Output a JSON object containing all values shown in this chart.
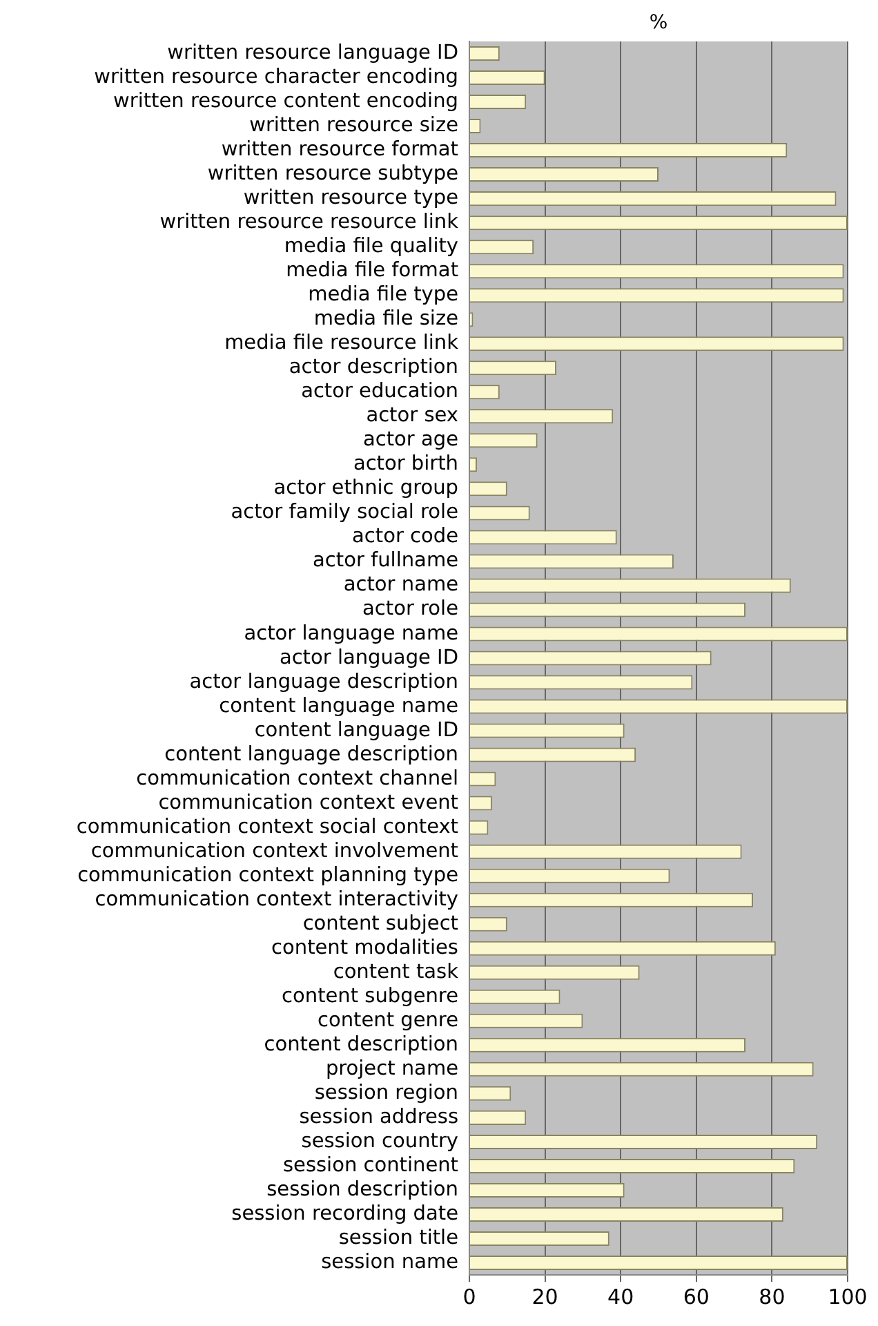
{
  "chart_data": {
    "type": "bar",
    "orientation": "horizontal",
    "xlabel": "%",
    "categories": [
      "written resource language ID",
      "written resource character encoding",
      "written resource content encoding",
      "written resource size",
      "written resource format",
      "written resource subtype",
      "written resource type",
      "written resource resource link",
      "media file quality",
      "media file format",
      "media file type",
      "media file size",
      "media file resource link",
      "actor description",
      "actor education",
      "actor sex",
      "actor age",
      "actor birth",
      "actor ethnic group",
      "actor family social role",
      "actor code",
      "actor fullname",
      "actor name",
      "actor role",
      "actor language name",
      "actor language ID",
      "actor language description",
      "content language name",
      "content language ID",
      "content language description",
      "communication context channel",
      "communication context event",
      "communication context social context",
      "communication context involvement",
      "communication context planning type",
      "communication context interactivity",
      "content subject",
      "content modalities",
      "content task",
      "content subgenre",
      "content genre",
      "content description",
      "project name",
      "session region",
      "session address",
      "session country",
      "session continent",
      "session description",
      "session recording date",
      "session title",
      "session name"
    ],
    "values": [
      8,
      20,
      15,
      3,
      84,
      50,
      97,
      100,
      17,
      99,
      99,
      1,
      99,
      23,
      8,
      38,
      18,
      2,
      10,
      16,
      39,
      54,
      85,
      73,
      100,
      64,
      59,
      100,
      41,
      44,
      7,
      6,
      5,
      72,
      53,
      75,
      10,
      81,
      45,
      24,
      30,
      73,
      91,
      11,
      15,
      92,
      86,
      41,
      83,
      37,
      100
    ],
    "color": "#fbf8cf",
    "xlim": [
      0,
      100
    ],
    "xticks": [
      0,
      20,
      40,
      60,
      80,
      100
    ],
    "grid": "x",
    "legend": false
  }
}
